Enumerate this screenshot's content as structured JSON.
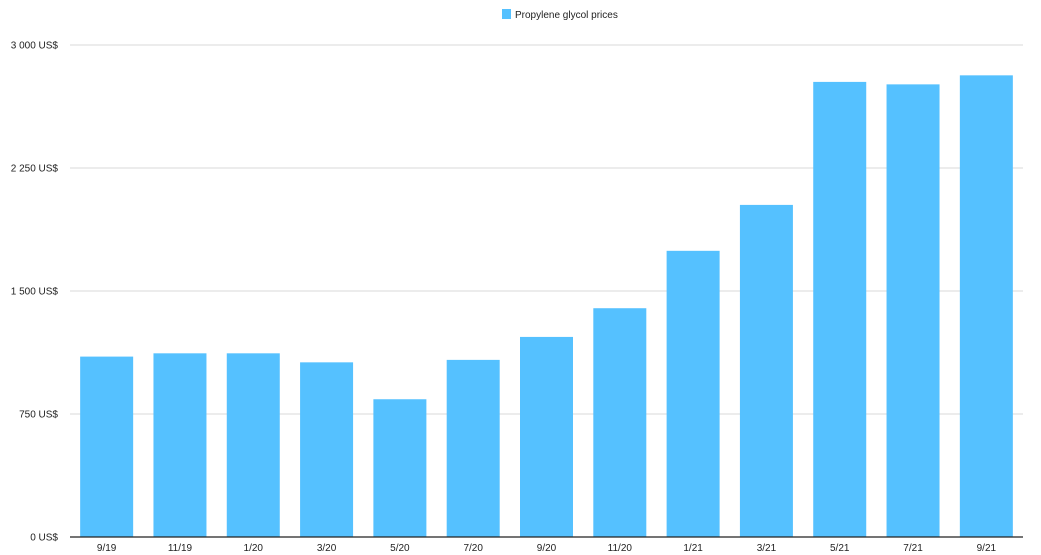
{
  "chart_data": {
    "type": "bar",
    "categories": [
      "9/19",
      "11/19",
      "1/20",
      "3/20",
      "5/20",
      "7/20",
      "9/20",
      "11/20",
      "1/21",
      "3/21",
      "5/21",
      "7/21",
      "9/21"
    ],
    "series": [
      {
        "name": "Propylene glycol prices",
        "color": "#55c1ff",
        "values": [
          1100,
          1120,
          1120,
          1065,
          840,
          1080,
          1220,
          1395,
          1745,
          2025,
          2775,
          2760,
          2815
        ]
      }
    ],
    "y_ticks": [
      {
        "value": 0,
        "label": "0 US$"
      },
      {
        "value": 750,
        "label": "750 US$"
      },
      {
        "value": 1500,
        "label": "1 500 US$"
      },
      {
        "value": 2250,
        "label": "2 250 US$"
      },
      {
        "value": 3000,
        "label": "3 000 US$"
      }
    ],
    "ylim": [
      0,
      3000
    ],
    "grid": true,
    "legend_position": "top-center"
  }
}
